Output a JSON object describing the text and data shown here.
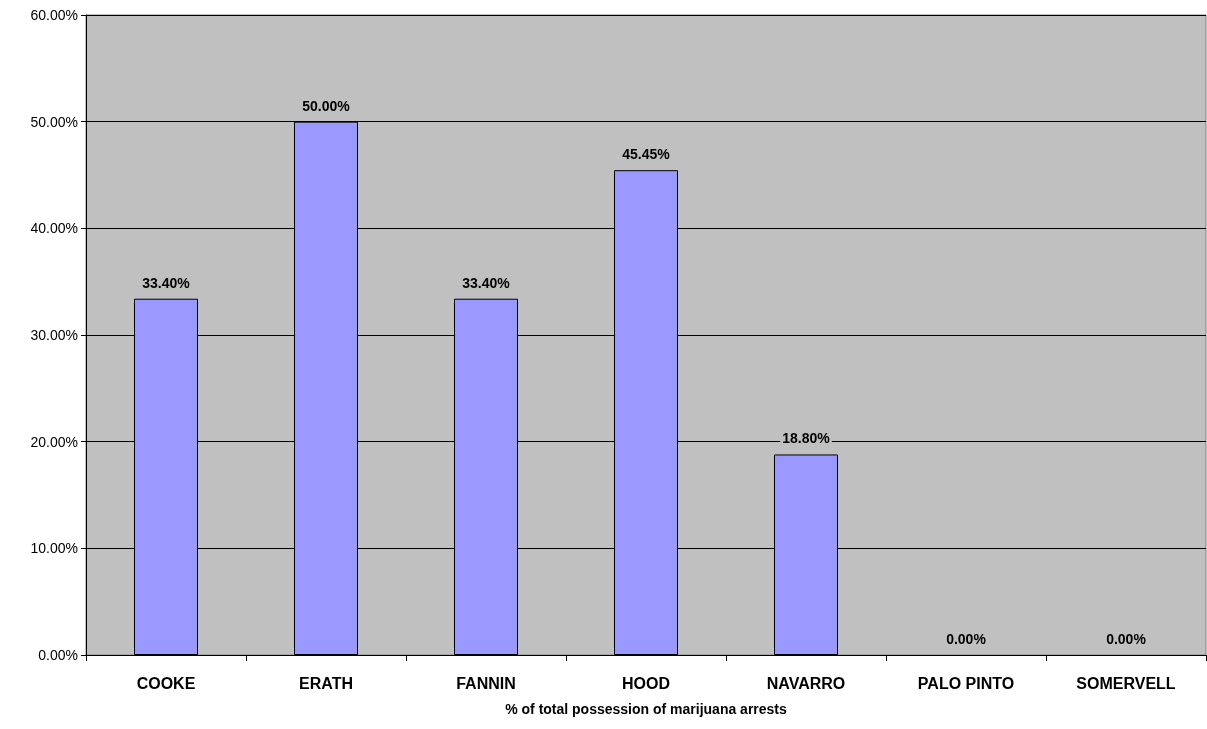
{
  "chart_data": {
    "type": "bar",
    "xlabel": "% of total possession of marijuana arrests",
    "categories": [
      "COOKE",
      "ERATH",
      "FANNIN",
      "HOOD",
      "NAVARRO",
      "PALO PINTO",
      "SOMERVELL"
    ],
    "values": [
      33.4,
      50.0,
      33.4,
      45.45,
      18.8,
      0,
      0
    ],
    "value_labels": [
      "33.40%",
      "50.00%",
      "33.40%",
      "45.45%",
      "18.80%",
      "0.00%",
      "0.00%"
    ],
    "color": "#9999ff",
    "ylim": [
      0,
      60
    ],
    "yticks": [
      {
        "value": 0,
        "label": "0.00%"
      },
      {
        "value": 10,
        "label": "10.00%"
      },
      {
        "value": 20,
        "label": "20.00%"
      },
      {
        "value": 30,
        "label": "30.00%"
      },
      {
        "value": 40,
        "label": "40.00%"
      },
      {
        "value": 50,
        "label": "50.00%"
      },
      {
        "value": 60,
        "label": "60.00%"
      }
    ],
    "grid": "y"
  }
}
